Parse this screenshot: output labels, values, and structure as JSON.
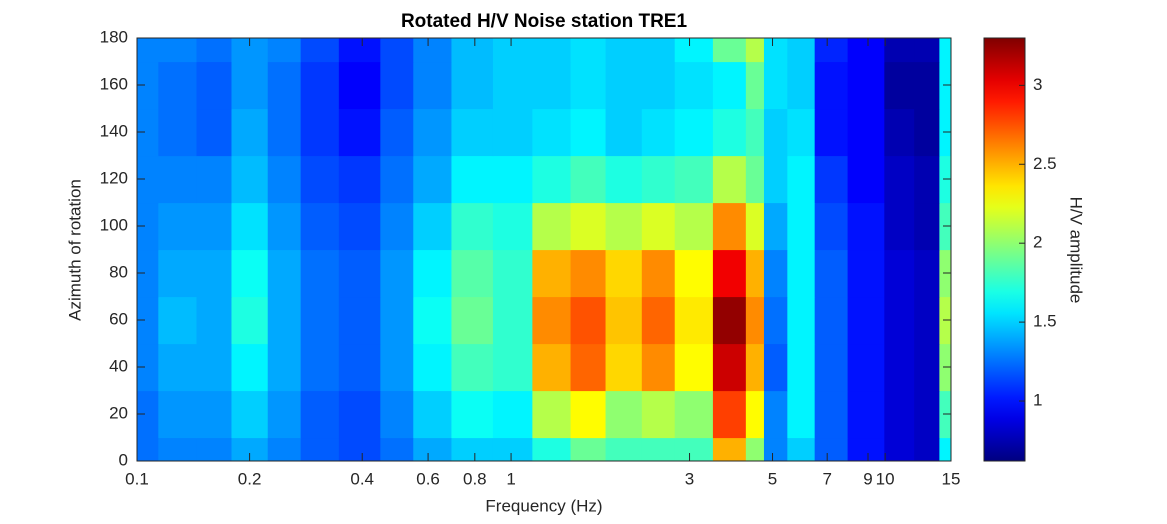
{
  "chart_data": {
    "type": "heatmap",
    "title": "Rotated H/V Noise station TRE1",
    "x_label": "Frequency (Hz)",
    "y_label": "Azimuth of rotation",
    "colorbar_label": "H/V amplitude",
    "colormap": "jet",
    "x_scale": "log",
    "x": [
      0.1,
      0.13,
      0.16,
      0.2,
      0.25,
      0.3,
      0.4,
      0.5,
      0.6,
      0.8,
      1,
      1.3,
      1.6,
      2,
      2.5,
      3,
      4,
      4.5,
      5,
      6,
      7,
      9,
      11,
      13,
      15
    ],
    "y": [
      0,
      20,
      40,
      60,
      80,
      100,
      120,
      140,
      160,
      180
    ],
    "values": [
      [
        1.25,
        1.3,
        1.3,
        1.4,
        1.3,
        1.2,
        1.15,
        1.25,
        1.4,
        1.5,
        1.5,
        1.7,
        1.9,
        1.8,
        1.8,
        1.8,
        2.5,
        2.0,
        1.3,
        1.5,
        1.2,
        1.0,
        0.85,
        0.8,
        1.6
      ],
      [
        1.25,
        1.35,
        1.35,
        1.5,
        1.35,
        1.2,
        1.15,
        1.3,
        1.5,
        1.65,
        1.6,
        2.1,
        2.3,
        2.0,
        2.1,
        2.0,
        2.8,
        2.3,
        1.3,
        1.6,
        1.2,
        1.0,
        0.85,
        0.8,
        1.8
      ],
      [
        1.3,
        1.4,
        1.4,
        1.6,
        1.4,
        1.25,
        1.2,
        1.35,
        1.6,
        1.8,
        1.75,
        2.5,
        2.7,
        2.4,
        2.6,
        2.3,
        3.1,
        2.5,
        1.2,
        1.6,
        1.2,
        1.0,
        0.85,
        0.8,
        2.0
      ],
      [
        1.3,
        1.45,
        1.4,
        1.7,
        1.4,
        1.25,
        1.2,
        1.35,
        1.65,
        1.9,
        1.75,
        2.6,
        2.75,
        2.45,
        2.7,
        2.35,
        3.25,
        2.6,
        1.25,
        1.6,
        1.2,
        1.0,
        0.85,
        0.8,
        2.1
      ],
      [
        1.3,
        1.4,
        1.4,
        1.65,
        1.4,
        1.25,
        1.2,
        1.35,
        1.6,
        1.85,
        1.75,
        2.5,
        2.6,
        2.4,
        2.6,
        2.3,
        3.0,
        2.5,
        1.3,
        1.6,
        1.2,
        1.0,
        0.85,
        0.8,
        2.0
      ],
      [
        1.3,
        1.35,
        1.35,
        1.55,
        1.35,
        1.2,
        1.15,
        1.3,
        1.5,
        1.75,
        1.7,
        2.1,
        2.2,
        2.1,
        2.2,
        2.1,
        2.6,
        2.2,
        1.4,
        1.6,
        1.15,
        1.0,
        0.8,
        0.75,
        1.8
      ],
      [
        1.3,
        1.3,
        1.3,
        1.45,
        1.3,
        1.15,
        1.1,
        1.25,
        1.4,
        1.6,
        1.6,
        1.7,
        1.8,
        1.7,
        1.75,
        1.8,
        2.1,
        1.9,
        1.5,
        1.6,
        1.1,
        0.95,
        0.8,
        0.75,
        1.7
      ],
      [
        1.3,
        1.25,
        1.2,
        1.4,
        1.25,
        1.1,
        1.0,
        1.2,
        1.35,
        1.5,
        1.5,
        1.55,
        1.6,
        1.5,
        1.55,
        1.6,
        1.7,
        1.8,
        1.5,
        1.55,
        1.0,
        0.95,
        0.75,
        0.7,
        1.6
      ],
      [
        1.3,
        1.25,
        1.2,
        1.35,
        1.25,
        1.1,
        0.95,
        1.15,
        1.3,
        1.45,
        1.5,
        1.5,
        1.55,
        1.5,
        1.5,
        1.55,
        1.6,
        1.9,
        1.55,
        1.5,
        1.0,
        0.95,
        0.7,
        0.7,
        1.6
      ],
      [
        1.3,
        1.3,
        1.25,
        1.35,
        1.3,
        1.15,
        1.0,
        1.15,
        1.3,
        1.45,
        1.5,
        1.5,
        1.55,
        1.5,
        1.5,
        1.6,
        1.9,
        2.1,
        1.55,
        1.5,
        1.05,
        0.95,
        0.75,
        0.75,
        1.6
      ]
    ],
    "xlim": [
      0.1,
      15
    ],
    "xticks": [
      0.1,
      0.2,
      0.4,
      0.6,
      0.8,
      1,
      3,
      5,
      7,
      9,
      10,
      15
    ],
    "ylim": [
      0,
      180
    ],
    "yticks": [
      0,
      20,
      40,
      60,
      80,
      100,
      120,
      140,
      160,
      180
    ],
    "clim": [
      0.62,
      3.3
    ],
    "cticks": [
      1,
      1.5,
      2,
      2.5,
      3
    ]
  }
}
